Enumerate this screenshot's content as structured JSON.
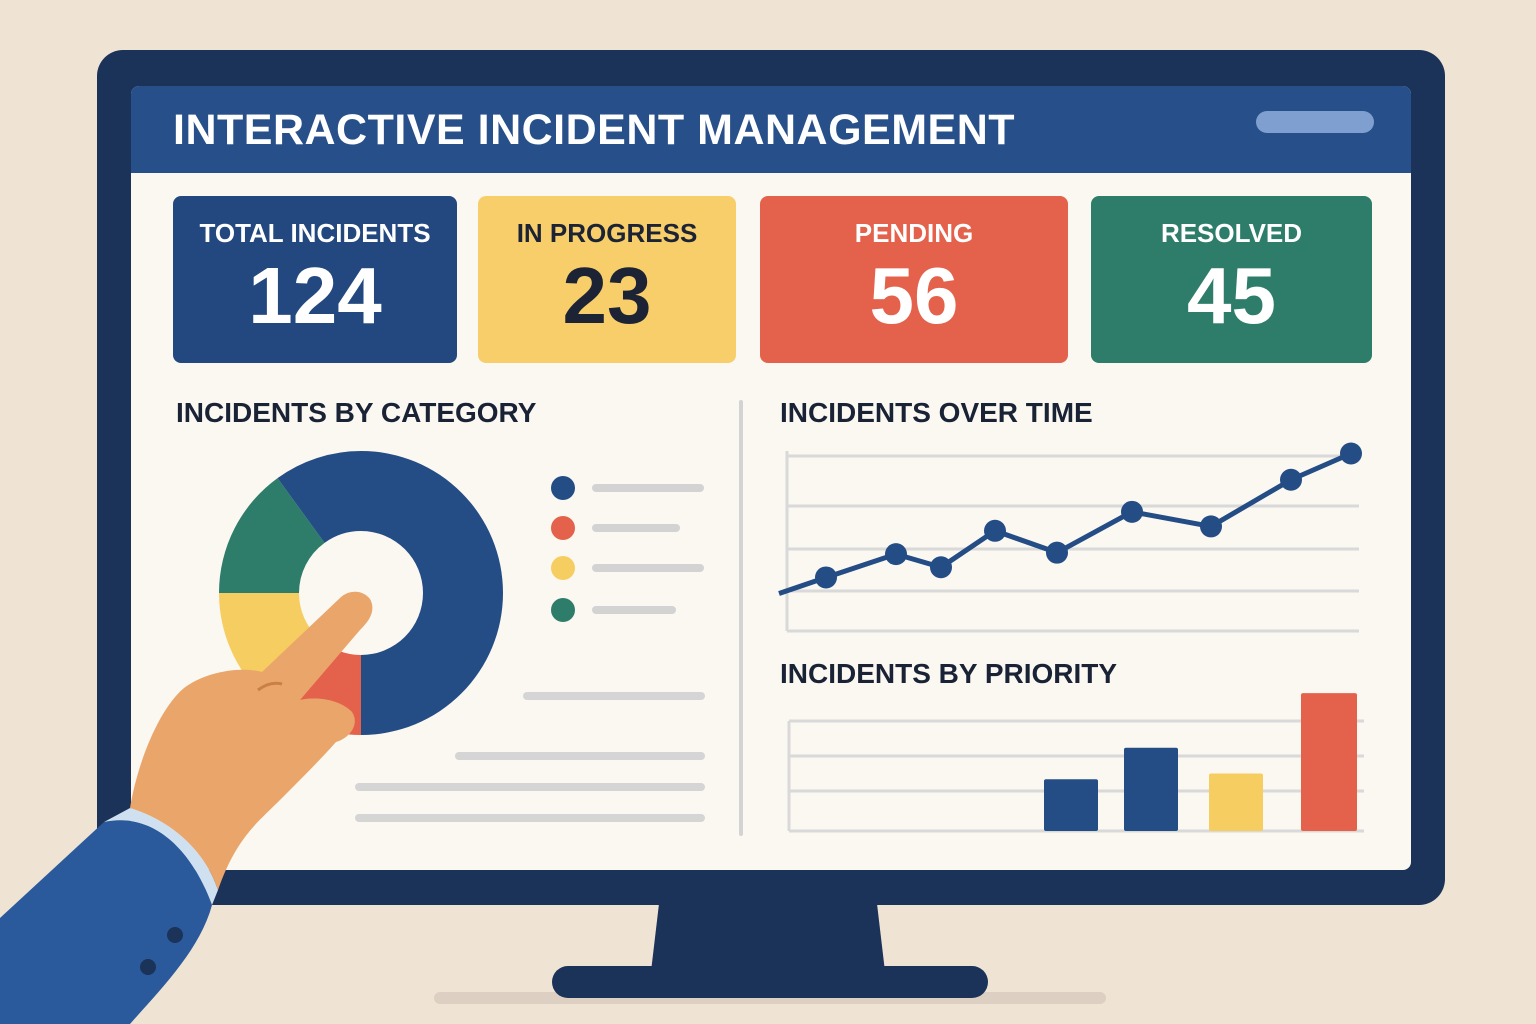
{
  "header": {
    "title": "INTERACTIVE INCIDENT MANAGEMENT"
  },
  "stats": [
    {
      "label": "TOTAL INCIDENTS",
      "value": "124",
      "bg": "#23487f",
      "fg": "#ffffff"
    },
    {
      "label": "IN PROGRESS",
      "value": "23",
      "bg": "#f7ce6a",
      "fg": "#1b2335"
    },
    {
      "label": "PENDING",
      "value": "56",
      "bg": "#e4624b",
      "fg": "#ffffff"
    },
    {
      "label": "RESOLVED",
      "value": "45",
      "bg": "#2e7d6a",
      "fg": "#ffffff"
    }
  ],
  "sections": {
    "category_title": "INCIDENTS BY CATEGORY",
    "time_title": "INCIDENTS OVER TIME",
    "priority_title": "INCIDENTS BY PRIORITY"
  },
  "colors": {
    "navy": "#244c85",
    "red": "#e4624b",
    "yellow": "#f6cd60",
    "green": "#2e7d6a",
    "screen_bg": "#fbf8f1",
    "gridline": "#d9d9d9"
  },
  "chart_data": [
    {
      "type": "pie",
      "title": "INCIDENTS BY CATEGORY",
      "values": [
        0.5,
        0.12,
        0.13,
        0.15,
        0.1
      ],
      "colors": [
        "#244c85",
        "#e4624b",
        "#f6cd60",
        "#2e7d6a",
        "#244c85"
      ]
    },
    {
      "type": "line",
      "title": "INCIDENTS OVER TIME",
      "values": [
        1.2,
        2.3,
        3.9,
        3.0,
        5.5,
        4.0,
        6.8,
        5.8,
        9.0,
        10.8
      ],
      "has_markers": [
        false,
        true,
        true,
        true,
        true,
        true,
        true,
        true,
        true,
        true
      ],
      "ylim": [
        0,
        12
      ],
      "grid": true,
      "color": "#244c85"
    },
    {
      "type": "bar",
      "title": "INCIDENTS BY PRIORITY",
      "values": [
        36,
        58,
        40,
        96
      ],
      "colors": [
        "#244c85",
        "#244c85",
        "#f6cd60",
        "#e4624b"
      ],
      "ylim": [
        0,
        110
      ],
      "grid": true
    }
  ],
  "icons": {
    "pointer": "hand-pointer-icon"
  }
}
